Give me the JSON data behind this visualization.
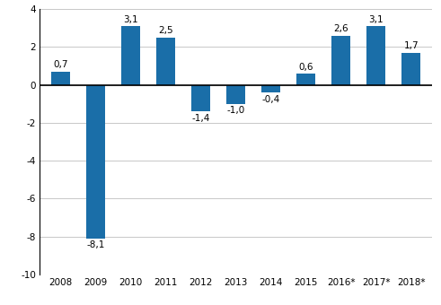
{
  "categories": [
    "2008",
    "2009",
    "2010",
    "2011",
    "2012",
    "2013",
    "2014",
    "2015",
    "2016*",
    "2017*",
    "2018*"
  ],
  "values": [
    0.7,
    -8.1,
    3.1,
    2.5,
    -1.4,
    -1.0,
    -0.4,
    0.6,
    2.6,
    3.1,
    1.7
  ],
  "bar_color": "#1a6ea8",
  "ylim": [
    -10,
    4
  ],
  "yticks": [
    -10,
    -8,
    -6,
    -4,
    -2,
    0,
    2,
    4
  ],
  "label_fontsize": 7.5,
  "tick_fontsize": 7.5,
  "background_color": "#ffffff",
  "grid_color": "#c8c8c8",
  "bar_width": 0.55
}
